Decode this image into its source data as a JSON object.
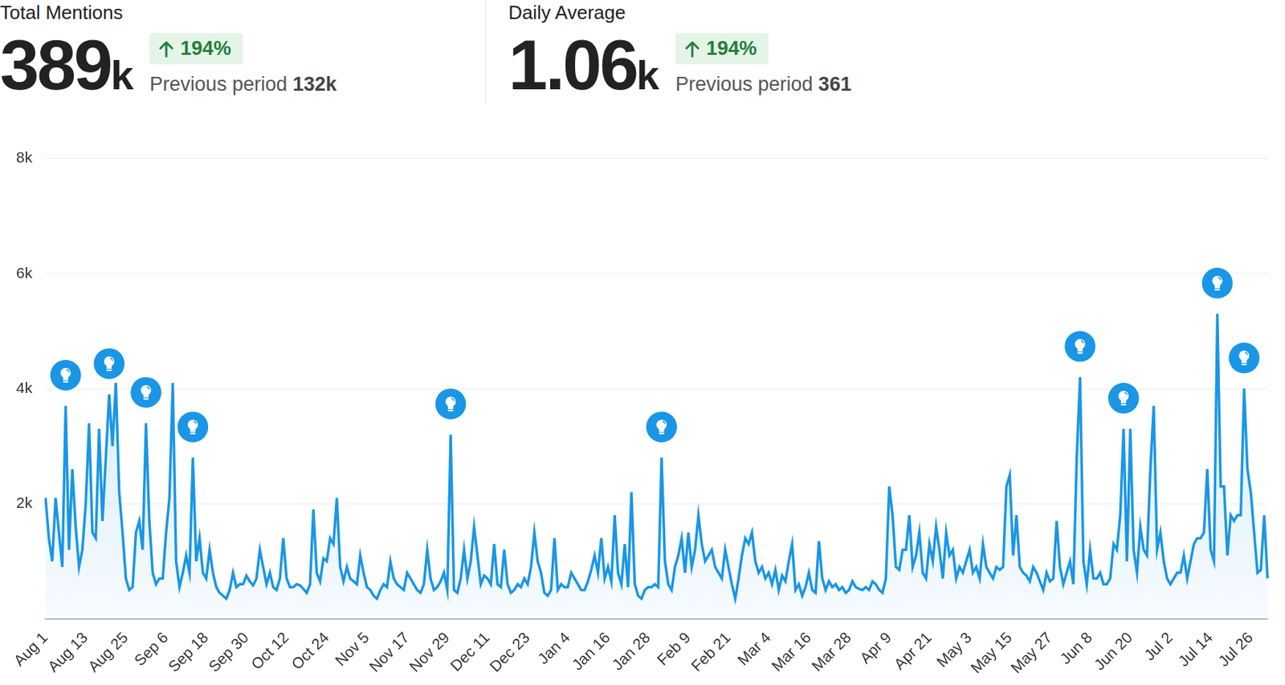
{
  "header": {
    "stats": [
      {
        "title": "Total Mentions",
        "value": "389",
        "unit": "k",
        "change": "194%",
        "previous_label": "Previous period",
        "previous_value": "132k"
      },
      {
        "title": "Daily Average",
        "value": "1.06",
        "unit": "k",
        "change": "194%",
        "previous_label": "Previous period",
        "previous_value": "361"
      }
    ]
  },
  "chart_data": {
    "type": "line",
    "color": "#1a96e6",
    "grid": true,
    "tick_labels": true,
    "ylim": [
      0,
      8000
    ],
    "yticks": [
      {
        "value": 2000,
        "label": "2k"
      },
      {
        "value": 4000,
        "label": "4k"
      },
      {
        "value": 6000,
        "label": "6k"
      },
      {
        "value": 8000,
        "label": "8k"
      }
    ],
    "categories": [
      "Aug 1",
      null,
      null,
      null,
      null,
      null,
      null,
      null,
      null,
      null,
      null,
      null,
      "Aug 13",
      null,
      null,
      null,
      null,
      null,
      null,
      null,
      null,
      null,
      null,
      null,
      "Aug 25",
      null,
      null,
      null,
      null,
      null,
      null,
      null,
      null,
      null,
      null,
      null,
      "Sep 6",
      null,
      null,
      null,
      null,
      null,
      null,
      null,
      null,
      null,
      null,
      null,
      "Sep 18",
      null,
      null,
      null,
      null,
      null,
      null,
      null,
      null,
      null,
      null,
      null,
      "Sep 30",
      null,
      null,
      null,
      null,
      null,
      null,
      null,
      null,
      null,
      null,
      null,
      "Oct 12",
      null,
      null,
      null,
      null,
      null,
      null,
      null,
      null,
      null,
      null,
      null,
      "Oct 24",
      null,
      null,
      null,
      null,
      null,
      null,
      null,
      null,
      null,
      null,
      null,
      "Nov 5",
      null,
      null,
      null,
      null,
      null,
      null,
      null,
      null,
      null,
      null,
      null,
      "Nov 17",
      null,
      null,
      null,
      null,
      null,
      null,
      null,
      null,
      null,
      null,
      null,
      "Nov 29",
      null,
      null,
      null,
      null,
      null,
      null,
      null,
      null,
      null,
      null,
      null,
      "Dec 11",
      null,
      null,
      null,
      null,
      null,
      null,
      null,
      null,
      null,
      null,
      null,
      "Dec 23",
      null,
      null,
      null,
      null,
      null,
      null,
      null,
      null,
      null,
      null,
      null,
      "Jan 4",
      null,
      null,
      null,
      null,
      null,
      null,
      null,
      null,
      null,
      null,
      null,
      "Jan 16",
      null,
      null,
      null,
      null,
      null,
      null,
      null,
      null,
      null,
      null,
      null,
      "Jan 28",
      null,
      null,
      null,
      null,
      null,
      null,
      null,
      null,
      null,
      null,
      null,
      "Feb 9",
      null,
      null,
      null,
      null,
      null,
      null,
      null,
      null,
      null,
      null,
      null,
      "Feb 21",
      null,
      null,
      null,
      null,
      null,
      null,
      null,
      null,
      null,
      null,
      null,
      "Mar 4",
      null,
      null,
      null,
      null,
      null,
      null,
      null,
      null,
      null,
      null,
      null,
      "Mar 16",
      null,
      null,
      null,
      null,
      null,
      null,
      null,
      null,
      null,
      null,
      null,
      "Mar 28",
      null,
      null,
      null,
      null,
      null,
      null,
      null,
      null,
      null,
      null,
      null,
      "Apr 9",
      null,
      null,
      null,
      null,
      null,
      null,
      null,
      null,
      null,
      null,
      null,
      "Apr 21",
      null,
      null,
      null,
      null,
      null,
      null,
      null,
      null,
      null,
      null,
      null,
      "May 3",
      null,
      null,
      null,
      null,
      null,
      null,
      null,
      null,
      null,
      null,
      null,
      "May 15",
      null,
      null,
      null,
      null,
      null,
      null,
      null,
      null,
      null,
      null,
      null,
      "May 27",
      null,
      null,
      null,
      null,
      null,
      null,
      null,
      null,
      null,
      null,
      null,
      "Jun 8",
      null,
      null,
      null,
      null,
      null,
      null,
      null,
      null,
      null,
      null,
      null,
      "Jun 20",
      null,
      null,
      null,
      null,
      null,
      null,
      null,
      null,
      null,
      null,
      null,
      "Jul 2",
      null,
      null,
      null,
      null,
      null,
      null,
      null,
      null,
      null,
      null,
      null,
      "Jul 14",
      null,
      null,
      null,
      null,
      null,
      null,
      null,
      null,
      null,
      null,
      null,
      "Jul 26",
      null,
      null,
      null,
      null,
      null
    ],
    "values": [
      2100,
      1400,
      1000,
      2100,
      1500,
      900,
      3700,
      1200,
      2600,
      1600,
      900,
      1200,
      2000,
      3400,
      1500,
      1400,
      3300,
      1700,
      2800,
      3900,
      3000,
      4100,
      2200,
      1500,
      700,
      500,
      550,
      1500,
      1700,
      1200,
      3400,
      1700,
      800,
      600,
      700,
      700,
      1500,
      2100,
      4100,
      1000,
      550,
      800,
      1100,
      800,
      2800,
      1000,
      1400,
      800,
      700,
      1200,
      800,
      550,
      450,
      400,
      350,
      500,
      800,
      550,
      600,
      600,
      750,
      650,
      580,
      700,
      1200,
      900,
      600,
      800,
      550,
      500,
      700,
      1400,
      700,
      550,
      550,
      600,
      580,
      520,
      450,
      600,
      1900,
      800,
      650,
      1050,
      1000,
      1400,
      1300,
      2100,
      900,
      650,
      900,
      700,
      650,
      600,
      1100,
      800,
      550,
      500,
      400,
      350,
      500,
      600,
      550,
      1000,
      700,
      600,
      550,
      500,
      800,
      700,
      600,
      500,
      450,
      600,
      1200,
      700,
      500,
      550,
      650,
      800,
      500,
      3200,
      500,
      450,
      700,
      1200,
      700,
      1000,
      1600,
      1100,
      600,
      750,
      700,
      600,
      1300,
      600,
      550,
      1200,
      600,
      450,
      500,
      600,
      550,
      700,
      600,
      900,
      1500,
      1000,
      800,
      450,
      400,
      500,
      1400,
      500,
      600,
      550,
      550,
      800,
      700,
      600,
      500,
      500,
      650,
      850,
      1100,
      800,
      1400,
      700,
      900,
      650,
      1800,
      800,
      600,
      1300,
      550,
      2200,
      600,
      400,
      350,
      500,
      550,
      550,
      600,
      550,
      2800,
      1000,
      600,
      500,
      900,
      1100,
      1400,
      800,
      1500,
      900,
      1200,
      1800,
      1300,
      1000,
      1100,
      1200,
      900,
      800,
      700,
      1200,
      900,
      600,
      350,
      700,
      1100,
      1400,
      1300,
      1500,
      1000,
      800,
      900,
      700,
      800,
      600,
      850,
      500,
      750,
      650,
      1000,
      1300,
      500,
      600,
      400,
      550,
      800,
      500,
      450,
      1350,
      700,
      500,
      650,
      550,
      600,
      500,
      550,
      450,
      500,
      650,
      550,
      520,
      500,
      550,
      500,
      650,
      600,
      500,
      450,
      700,
      2300,
      1800,
      900,
      850,
      1200,
      1200,
      1800,
      900,
      1100,
      1500,
      800,
      700,
      1300,
      1000,
      1600,
      1200,
      700,
      1500,
      1100,
      1200,
      700,
      900,
      800,
      1000,
      1200,
      800,
      900,
      700,
      1300,
      900,
      800,
      700,
      900,
      850,
      900,
      2300,
      2500,
      1100,
      1800,
      900,
      800,
      750,
      650,
      900,
      800,
      650,
      500,
      800,
      650,
      700,
      1700,
      900,
      600,
      800,
      1000,
      600,
      2800,
      4200,
      1000,
      600,
      1200,
      700,
      700,
      800,
      600,
      600,
      700,
      1300,
      1200,
      1800,
      3300,
      1000,
      3300,
      1200,
      800,
      1600,
      1200,
      1100,
      2600,
      3700,
      1200,
      1500,
      1000,
      700,
      600,
      700,
      800,
      800,
      1100,
      700,
      1000,
      1300,
      1400,
      1400,
      1500,
      2600,
      1200,
      1000,
      5300,
      2300,
      2300,
      1100,
      1800,
      1700,
      1800,
      1800,
      4000,
      2600,
      2200,
      1500,
      800,
      850,
      1800,
      700
    ],
    "insights": [
      6,
      19,
      30,
      44,
      121,
      184,
      309,
      322,
      350,
      358
    ]
  }
}
